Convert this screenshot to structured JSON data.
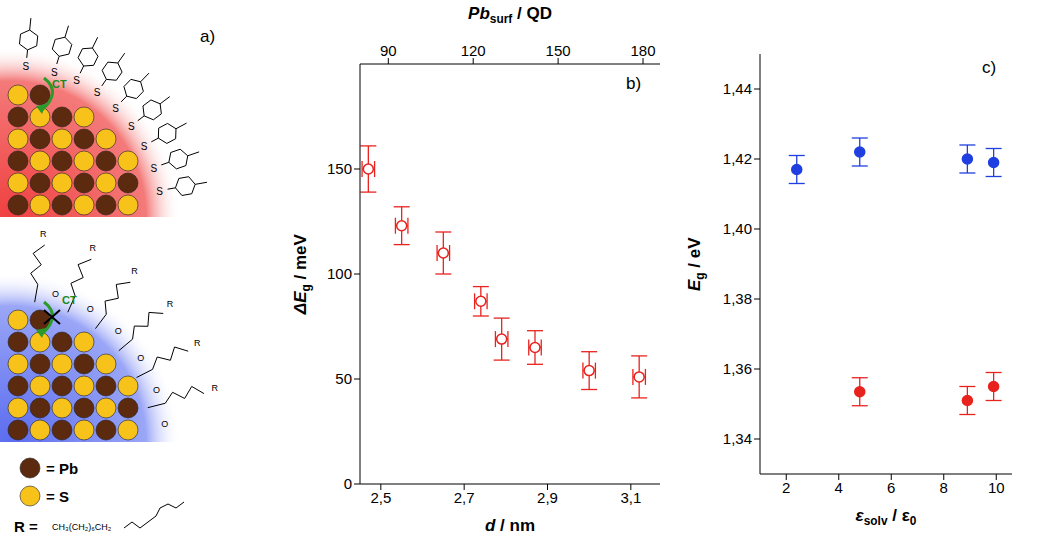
{
  "diagram": {
    "label": "a)",
    "top": {
      "ligand_atom": "S",
      "ct": "CT"
    },
    "bottom": {
      "ligand_atom": "O",
      "ct": "CT",
      "chain_end": "R"
    },
    "legend": [
      {
        "text": "= Pb"
      },
      {
        "text": "= S"
      }
    ],
    "r_definition": {
      "label": "R =",
      "formula": "CH₃(CH₂)₆CH₂"
    }
  },
  "chart_data": [
    {
      "type": "scatter",
      "panel_label": "b)",
      "xlabel": [
        {
          "text": "d"
        },
        {
          "text": " / nm"
        }
      ],
      "ylabel": [
        {
          "text": "ΔE"
        },
        {
          "text": "g",
          "sub": true
        },
        {
          "text": " / meV"
        }
      ],
      "x2label": [
        {
          "text": "Pb"
        },
        {
          "text": "surf",
          "sub": true
        },
        {
          "text": " / QD"
        }
      ],
      "xlim": [
        2.45,
        3.17
      ],
      "xticks": [
        {
          "value": 2.5,
          "label": "2,5"
        },
        {
          "value": 2.7,
          "label": "2,7"
        },
        {
          "value": 2.9,
          "label": "2,9"
        },
        {
          "value": 3.1,
          "label": "3,1"
        }
      ],
      "x2lim": [
        80,
        186
      ],
      "x2ticks": [
        90,
        120,
        150,
        180
      ],
      "ylim": [
        0,
        200
      ],
      "yticks": [
        0,
        50,
        100,
        150
      ],
      "color": "#e8231e",
      "marker": "open_circle",
      "x": [
        2.47,
        2.55,
        2.65,
        2.74,
        2.79,
        2.87,
        3.0,
        3.12
      ],
      "values": [
        150,
        123,
        110,
        87,
        69,
        65,
        54,
        51
      ],
      "y_error": [
        11,
        9,
        10,
        7,
        10,
        8,
        9,
        10
      ],
      "x_error": [
        0.015,
        0.015,
        0.015,
        0.015,
        0.015,
        0.015,
        0.015,
        0.015
      ]
    },
    {
      "type": "scatter",
      "panel_label": "c)",
      "xlabel": [
        {
          "text": "ε"
        },
        {
          "text": "solv",
          "sub": true
        },
        {
          "text": " / ε"
        },
        {
          "text": "0",
          "sub": true
        }
      ],
      "ylabel": [
        {
          "text": "E"
        },
        {
          "text": "g",
          "sub": true
        },
        {
          "text": " / eV"
        }
      ],
      "xlim": [
        1,
        10.6
      ],
      "xticks": [
        2,
        4,
        6,
        8,
        10
      ],
      "ylim": [
        1.33,
        1.45
      ],
      "yticks": [
        {
          "value": 1.34,
          "label": "1,34"
        },
        {
          "value": 1.36,
          "label": "1,36"
        },
        {
          "value": 1.38,
          "label": "1,38"
        },
        {
          "value": 1.4,
          "label": "1,40"
        },
        {
          "value": 1.42,
          "label": "1,42"
        },
        {
          "value": 1.44,
          "label": "1,44"
        }
      ],
      "series": [
        {
          "color": "#1f3fe0",
          "marker": "circle",
          "x": [
            2.4,
            4.8,
            8.9,
            9.9
          ],
          "values": [
            1.417,
            1.422,
            1.42,
            1.419
          ],
          "y_error": [
            0.004,
            0.004,
            0.004,
            0.004
          ]
        },
        {
          "color": "#e8231e",
          "marker": "circle",
          "x": [
            4.8,
            8.9,
            9.9
          ],
          "values": [
            1.3535,
            1.351,
            1.355
          ],
          "y_error": [
            0.004,
            0.004,
            0.004
          ]
        }
      ]
    }
  ]
}
